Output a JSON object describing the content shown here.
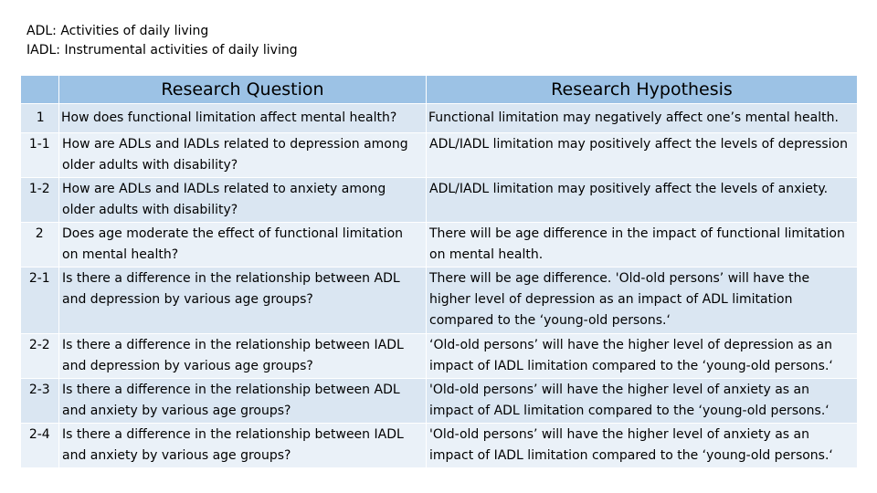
{
  "definitions": [
    "ADL: Activities of daily living",
    "IADL: Instrumental activities of daily living"
  ],
  "table": {
    "headers": {
      "question": "Research Question",
      "hypothesis": "Research Hypothesis"
    },
    "rows": [
      {
        "num": "1",
        "question": "How does functional limitation affect mental health?",
        "hypothesis": "Functional limitation may negatively affect one’s mental health."
      },
      {
        "num": "1-1",
        "question": "How are ADLs and IADLs related to depression among older adults with disability?",
        "hypothesis": "ADL/IADL limitation may positively affect the levels of depression"
      },
      {
        "num": "1-2",
        "question": "How are ADLs and IADLs related to anxiety among older adults with disability?",
        "hypothesis": "ADL/IADL limitation may positively affect the levels of anxiety."
      },
      {
        "num": "2",
        "question": "Does age moderate the effect of functional limitation on mental health?",
        "hypothesis": "There will be age difference in the impact of functional limitation on mental health."
      },
      {
        "num": "2-1",
        "question": "Is there a difference in the relationship between ADL and depression by various age groups?",
        "hypothesis": "There will be age difference. 'Old-old persons’ will have the higher level of depression as an impact of ADL limitation compared to the ‘young-old persons.‘"
      },
      {
        "num": "2-2",
        "question": "Is there a difference in the relationship between IADL and depression by various age groups?",
        "hypothesis": "‘Old-old persons’ will have the higher level of depression as an impact of IADL limitation compared to the ‘young-old persons.‘"
      },
      {
        "num": "2-3",
        "question": "Is there a difference in the relationship between ADL and anxiety by various age groups?",
        "hypothesis": "'Old-old persons’ will have the higher level of anxiety as an impact of ADL limitation compared to the ‘young-old persons.‘"
      },
      {
        "num": "2-4",
        "question": "Is there a difference in the relationship between IADL and anxiety by various age groups?",
        "hypothesis": "'Old-old persons’ will have the higher level of anxiety as an impact of IADL limitation compared to the ‘young-old persons.‘"
      }
    ]
  }
}
